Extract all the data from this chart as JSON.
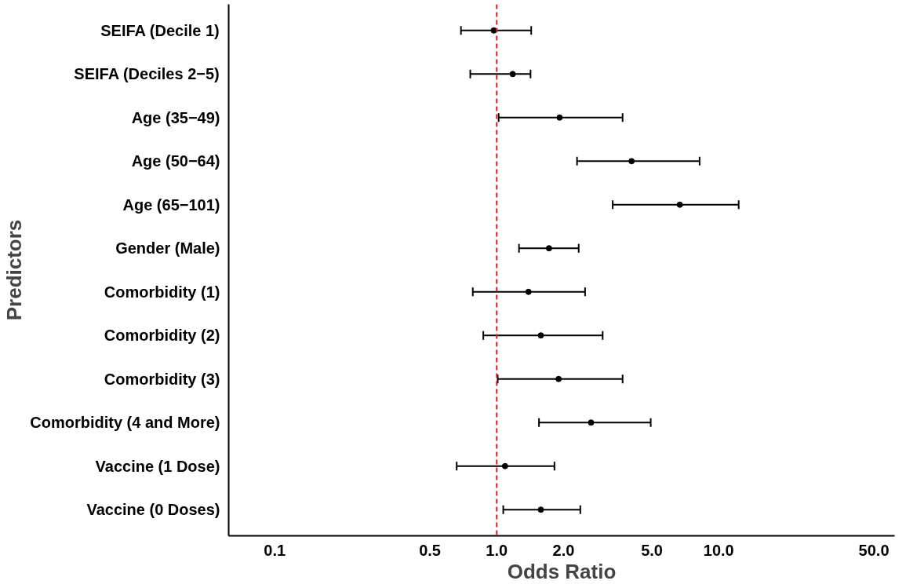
{
  "chart_data": {
    "type": "scatter",
    "orientation": "horizontal",
    "xlabel": "Odds Ratio",
    "ylabel": "Predictors",
    "categories": [
      "SEIFA (Decile 1)",
      "SEIFA (Deciles 2−5)",
      "Age (35−49)",
      "Age (50−64)",
      "Age (65−101)",
      "Gender (Male)",
      "Comorbidity (1)",
      "Comorbidity (2)",
      "Comorbidity (3)",
      "Comorbidity (4 and More)",
      "Vaccine (1 Dose)",
      "Vaccine (0 Doses)"
    ],
    "values": [
      0.97,
      1.18,
      1.92,
      4.05,
      6.68,
      1.72,
      1.39,
      1.58,
      1.9,
      2.66,
      1.09,
      1.58
    ],
    "errors": [
      [
        0.69,
        1.43
      ],
      [
        0.76,
        1.42
      ],
      [
        1.02,
        3.69
      ],
      [
        2.3,
        8.2
      ],
      [
        3.33,
        12.3
      ],
      [
        1.26,
        2.34
      ],
      [
        0.78,
        2.5
      ],
      [
        0.87,
        3.0
      ],
      [
        1.01,
        3.69
      ],
      [
        1.55,
        4.94
      ],
      [
        0.66,
        1.82
      ],
      [
        1.07,
        2.38
      ]
    ],
    "color": "#000000",
    "marker": "circle",
    "log": "x",
    "grid": false,
    "xlim": [
      0.062,
      62
    ],
    "xticks": [
      0.1,
      0.5,
      {
        "value": 1,
        "label": "1.0"
      },
      {
        "value": 2,
        "label": "2.0"
      },
      {
        "value": 5,
        "label": "5.0"
      },
      {
        "value": 10,
        "label": "10.0"
      },
      {
        "value": 50,
        "label": "50.0"
      }
    ],
    "ref_lines": [
      {
        "axis": "x",
        "value": 1,
        "label": null,
        "color": "#e41a1c",
        "line_style": "dashed"
      }
    ]
  }
}
